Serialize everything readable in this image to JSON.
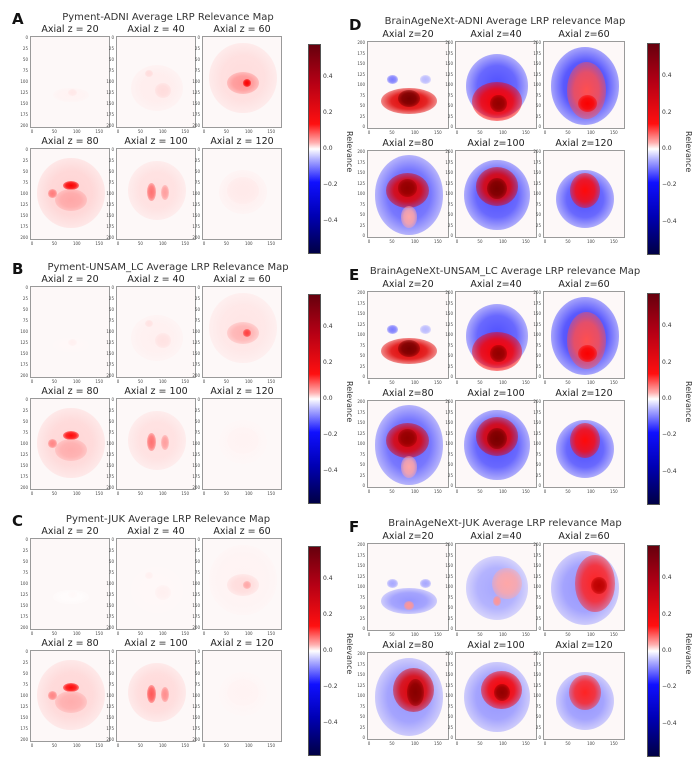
{
  "chart_data": [
    {
      "type": "heatmap",
      "panel": "A",
      "title": "Pyment-ADNI Average LRP Relevance Map",
      "subplots": [
        {
          "title": "Axial z = 20",
          "peak_relevance": 0.08
        },
        {
          "title": "Axial z = 40",
          "peak_relevance": 0.12
        },
        {
          "title": "Axial z = 60",
          "peak_relevance": 0.3
        },
        {
          "title": "Axial z = 80",
          "peak_relevance": 0.3
        },
        {
          "title": "Axial z = 100",
          "peak_relevance": 0.22
        },
        {
          "title": "Axial z = 120",
          "peak_relevance": 0.1
        }
      ],
      "x_ticks": [
        "0",
        "50",
        "100",
        "150"
      ],
      "y_ticks": [
        "0",
        "25",
        "50",
        "75",
        "100",
        "125",
        "150",
        "175",
        "200"
      ],
      "y_direction": "top-down",
      "colorbar": {
        "label": "Relevance",
        "ticks": [
          "0.4",
          "0.2",
          "0.0",
          "−0.2",
          "−0.4"
        ],
        "range": [
          -0.58,
          0.58
        ],
        "cmap": "seismic"
      }
    },
    {
      "type": "heatmap",
      "panel": "B",
      "title": "Pyment-UNSAM_LC Average LRP Relevance Map",
      "subplots": [
        {
          "title": "Axial z = 20",
          "peak_relevance": 0.05
        },
        {
          "title": "Axial z = 40",
          "peak_relevance": 0.1
        },
        {
          "title": "Axial z = 60",
          "peak_relevance": 0.22
        },
        {
          "title": "Axial z = 80",
          "peak_relevance": 0.28
        },
        {
          "title": "Axial z = 100",
          "peak_relevance": 0.22
        },
        {
          "title": "Axial z = 120",
          "peak_relevance": 0.06
        }
      ],
      "x_ticks": [
        "0",
        "50",
        "100",
        "150"
      ],
      "y_ticks": [
        "0",
        "25",
        "50",
        "75",
        "100",
        "125",
        "150",
        "175",
        "200"
      ],
      "y_direction": "top-down",
      "colorbar": {
        "label": "Relevance",
        "ticks": [
          "0.4",
          "0.2",
          "0.0",
          "−0.2",
          "−0.4"
        ],
        "range": [
          -0.58,
          0.58
        ],
        "cmap": "seismic"
      }
    },
    {
      "type": "heatmap",
      "panel": "C",
      "title": "Pyment-JUK Average LRP Relevance Map",
      "subplots": [
        {
          "title": "Axial z = 20",
          "peak_relevance": 0.02
        },
        {
          "title": "Axial z = 40",
          "peak_relevance": 0.05
        },
        {
          "title": "Axial z = 60",
          "peak_relevance": 0.1
        },
        {
          "title": "Axial z = 80",
          "peak_relevance": 0.28
        },
        {
          "title": "Axial z = 100",
          "peak_relevance": 0.26
        },
        {
          "title": "Axial z = 120",
          "peak_relevance": 0.06
        }
      ],
      "x_ticks": [
        "0",
        "50",
        "100",
        "150"
      ],
      "y_ticks": [
        "0",
        "25",
        "50",
        "75",
        "100",
        "125",
        "150",
        "175",
        "200"
      ],
      "y_direction": "top-down",
      "colorbar": {
        "label": "Relevance",
        "ticks": [
          "0.4",
          "0.2",
          "0.0",
          "−0.2",
          "−0.4"
        ],
        "range": [
          -0.58,
          0.58
        ],
        "cmap": "seismic"
      }
    },
    {
      "type": "heatmap",
      "panel": "D",
      "title": "BrainAgeNeXt-ADNI Average LRP relevance Map",
      "subplots": [
        {
          "title": "Axial z=20",
          "peak_relevance": 0.5
        },
        {
          "title": "Axial z=40",
          "peak_relevance": 0.45
        },
        {
          "title": "Axial z=60",
          "peak_relevance": 0.3
        },
        {
          "title": "Axial z=80",
          "peak_relevance": 0.45
        },
        {
          "title": "Axial z=100",
          "peak_relevance": 0.5
        },
        {
          "title": "Axial z=120",
          "peak_relevance": 0.3
        }
      ],
      "x_ticks": [
        "0",
        "50",
        "100",
        "150"
      ],
      "y_ticks": [
        "200",
        "175",
        "150",
        "125",
        "100",
        "75",
        "50",
        "25",
        "0"
      ],
      "y_direction": "bottom-up",
      "colorbar": {
        "label": "Relevance",
        "ticks": [
          "0.4",
          "0.2",
          "0.0",
          "−0.2",
          "−0.4"
        ],
        "range": [
          -0.58,
          0.58
        ],
        "cmap": "seismic"
      }
    },
    {
      "type": "heatmap",
      "panel": "E",
      "title": "BrainAgeNeXt-UNSAM_LC Average LRP relevance Map",
      "subplots": [
        {
          "title": "Axial z=20",
          "peak_relevance": 0.5
        },
        {
          "title": "Axial z=40",
          "peak_relevance": 0.45
        },
        {
          "title": "Axial z=60",
          "peak_relevance": 0.3
        },
        {
          "title": "Axial z=80",
          "peak_relevance": 0.45
        },
        {
          "title": "Axial z=100",
          "peak_relevance": 0.5
        },
        {
          "title": "Axial z=120",
          "peak_relevance": 0.3
        }
      ],
      "x_ticks": [
        "0",
        "50",
        "100",
        "150"
      ],
      "y_ticks": [
        "200",
        "175",
        "150",
        "125",
        "100",
        "75",
        "50",
        "25",
        "0"
      ],
      "y_direction": "bottom-up",
      "colorbar": {
        "label": "Relevance",
        "ticks": [
          "0.4",
          "0.2",
          "0.0",
          "−0.2",
          "−0.4"
        ],
        "range": [
          -0.58,
          0.58
        ],
        "cmap": "seismic"
      }
    },
    {
      "type": "heatmap",
      "panel": "F",
      "title": "BrainAgeNeXt-JUK Average LRP relevance Map",
      "subplots": [
        {
          "title": "Axial z=20",
          "peak_relevance": 0.1
        },
        {
          "title": "Axial z=40",
          "peak_relevance": 0.15
        },
        {
          "title": "Axial z=60",
          "peak_relevance": 0.4
        },
        {
          "title": "Axial z=80",
          "peak_relevance": 0.5
        },
        {
          "title": "Axial z=100",
          "peak_relevance": 0.5
        },
        {
          "title": "Axial z=120",
          "peak_relevance": 0.3
        }
      ],
      "x_ticks": [
        "0",
        "50",
        "100",
        "150"
      ],
      "y_ticks": [
        "200",
        "175",
        "150",
        "125",
        "100",
        "75",
        "50",
        "25",
        "0"
      ],
      "y_direction": "bottom-up",
      "colorbar": {
        "label": "Relevance",
        "ticks": [
          "0.4",
          "0.2",
          "0.0",
          "−0.2",
          "−0.4"
        ],
        "range": [
          -0.58,
          0.58
        ],
        "cmap": "seismic"
      }
    }
  ]
}
